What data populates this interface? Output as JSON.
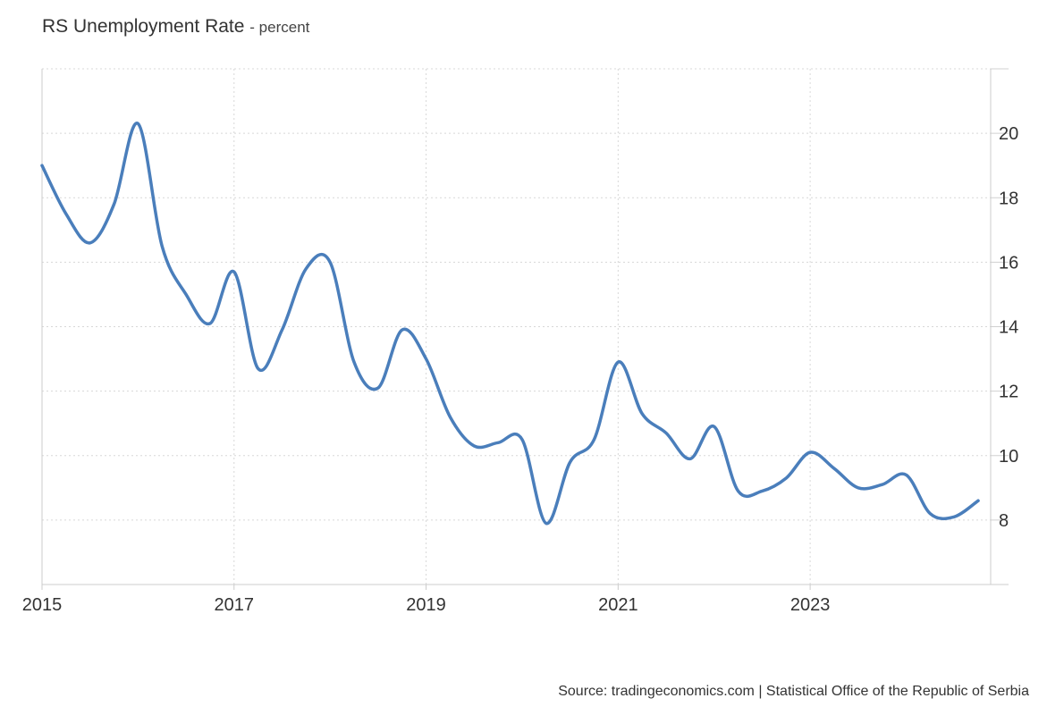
{
  "chart_data": {
    "type": "line",
    "title": "RS Unemployment Rate",
    "subtitle": "- percent",
    "source": "Source: tradingeconomics.com | Statistical Office of the Republic of Serbia",
    "xlabel": "",
    "ylabel": "",
    "xlim": [
      2015.0,
      2024.88
    ],
    "ylim": [
      6,
      22
    ],
    "x_ticks": [
      2015,
      2017,
      2019,
      2021,
      2023
    ],
    "x_tick_labels": [
      "2015",
      "2017",
      "2019",
      "2021",
      "2023"
    ],
    "y_ticks": [
      8,
      10,
      12,
      14,
      16,
      18,
      20
    ],
    "y_tick_labels": [
      "8",
      "10",
      "12",
      "14",
      "16",
      "18",
      "20"
    ],
    "y_axis_position": "right",
    "grid": true,
    "line_color": "#4a7ebb",
    "series": [
      {
        "name": "",
        "x": [
          2015.0,
          2015.25,
          2015.5,
          2015.75,
          2016.0,
          2016.25,
          2016.5,
          2016.75,
          2017.0,
          2017.25,
          2017.5,
          2017.75,
          2018.0,
          2018.25,
          2018.5,
          2018.75,
          2019.0,
          2019.25,
          2019.5,
          2019.75,
          2020.0,
          2020.25,
          2020.5,
          2020.75,
          2021.0,
          2021.25,
          2021.5,
          2021.75,
          2022.0,
          2022.25,
          2022.5,
          2022.75,
          2023.0,
          2023.25,
          2023.5,
          2023.75,
          2024.0,
          2024.25,
          2024.5,
          2024.75
        ],
        "values": [
          19.0,
          17.5,
          16.6,
          17.8,
          20.3,
          16.5,
          15.0,
          14.1,
          15.7,
          12.7,
          13.9,
          15.8,
          16.0,
          12.9,
          12.1,
          13.9,
          13.0,
          11.2,
          10.3,
          10.4,
          10.5,
          7.9,
          9.8,
          10.5,
          12.9,
          11.3,
          10.7,
          9.9,
          10.9,
          8.9,
          8.9,
          9.3,
          10.1,
          9.6,
          9.0,
          9.1,
          9.4,
          8.2,
          8.1,
          8.6
        ]
      }
    ]
  }
}
